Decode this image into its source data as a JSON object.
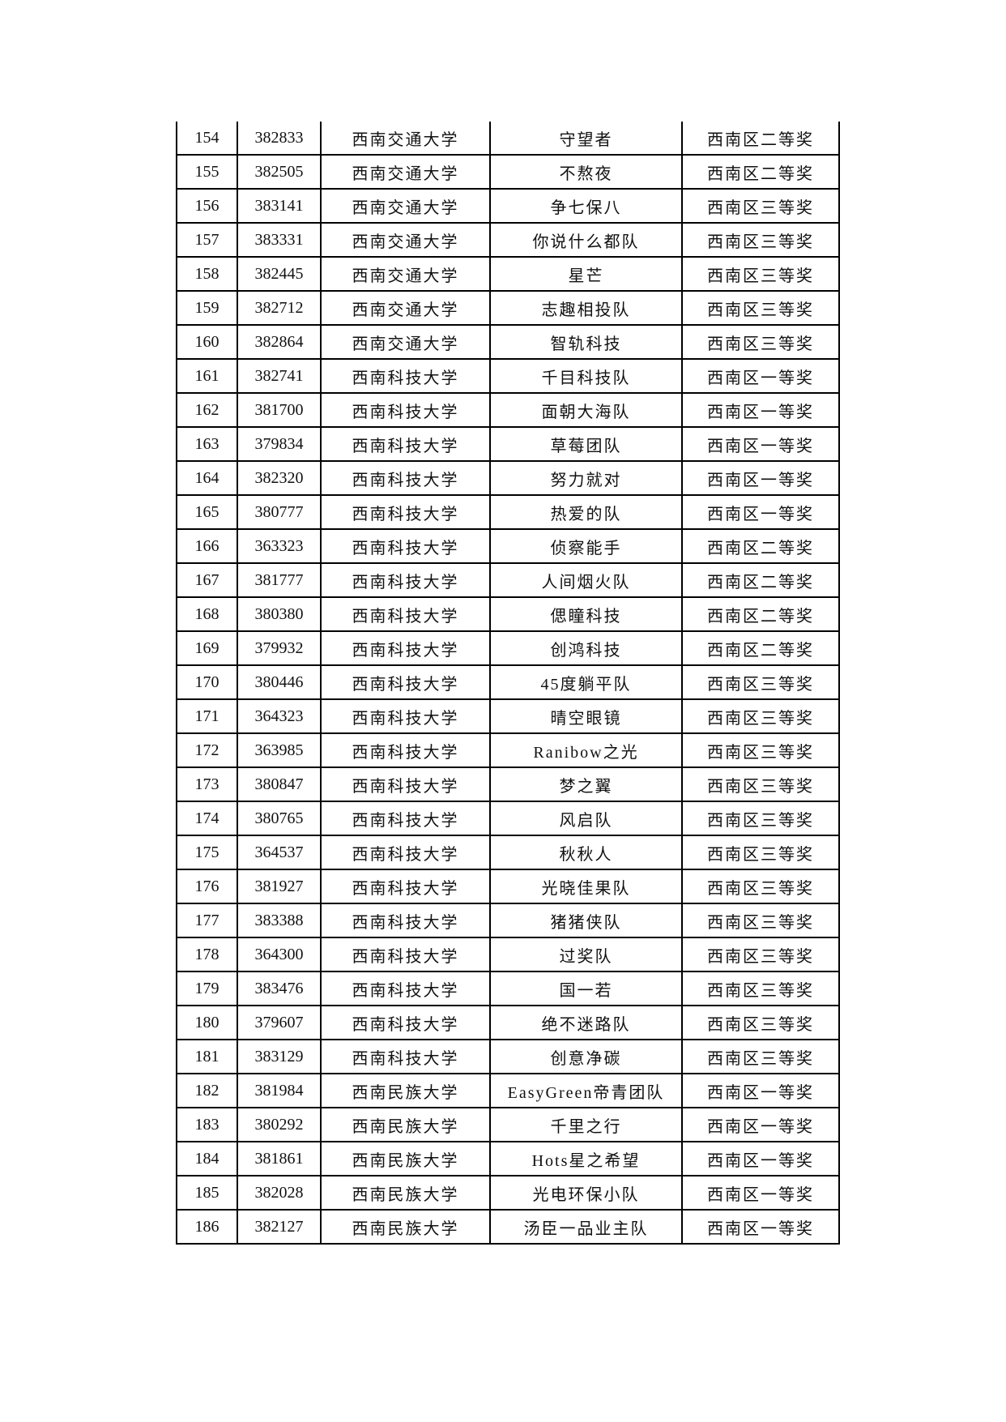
{
  "table": {
    "rows": [
      [
        "154",
        "382833",
        "西南交通大学",
        "守望者",
        "西南区二等奖"
      ],
      [
        "155",
        "382505",
        "西南交通大学",
        "不熬夜",
        "西南区二等奖"
      ],
      [
        "156",
        "383141",
        "西南交通大学",
        "争七保八",
        "西南区三等奖"
      ],
      [
        "157",
        "383331",
        "西南交通大学",
        "你说什么都队",
        "西南区三等奖"
      ],
      [
        "158",
        "382445",
        "西南交通大学",
        "星芒",
        "西南区三等奖"
      ],
      [
        "159",
        "382712",
        "西南交通大学",
        "志趣相投队",
        "西南区三等奖"
      ],
      [
        "160",
        "382864",
        "西南交通大学",
        "智轨科技",
        "西南区三等奖"
      ],
      [
        "161",
        "382741",
        "西南科技大学",
        "千目科技队",
        "西南区一等奖"
      ],
      [
        "162",
        "381700",
        "西南科技大学",
        "面朝大海队",
        "西南区一等奖"
      ],
      [
        "163",
        "379834",
        "西南科技大学",
        "草莓团队",
        "西南区一等奖"
      ],
      [
        "164",
        "382320",
        "西南科技大学",
        "努力就对",
        "西南区一等奖"
      ],
      [
        "165",
        "380777",
        "西南科技大学",
        "热爱的队",
        "西南区一等奖"
      ],
      [
        "166",
        "363323",
        "西南科技大学",
        "侦察能手",
        "西南区二等奖"
      ],
      [
        "167",
        "381777",
        "西南科技大学",
        "人间烟火队",
        "西南区二等奖"
      ],
      [
        "168",
        "380380",
        "西南科技大学",
        "偲瞳科技",
        "西南区二等奖"
      ],
      [
        "169",
        "379932",
        "西南科技大学",
        "创鸿科技",
        "西南区二等奖"
      ],
      [
        "170",
        "380446",
        "西南科技大学",
        "45度躺平队",
        "西南区三等奖"
      ],
      [
        "171",
        "364323",
        "西南科技大学",
        "晴空眼镜",
        "西南区三等奖"
      ],
      [
        "172",
        "363985",
        "西南科技大学",
        "Ranibow之光",
        "西南区三等奖"
      ],
      [
        "173",
        "380847",
        "西南科技大学",
        "梦之翼",
        "西南区三等奖"
      ],
      [
        "174",
        "380765",
        "西南科技大学",
        "风启队",
        "西南区三等奖"
      ],
      [
        "175",
        "364537",
        "西南科技大学",
        "秋秋人",
        "西南区三等奖"
      ],
      [
        "176",
        "381927",
        "西南科技大学",
        "光晓佳果队",
        "西南区三等奖"
      ],
      [
        "177",
        "383388",
        "西南科技大学",
        "猪猪侠队",
        "西南区三等奖"
      ],
      [
        "178",
        "364300",
        "西南科技大学",
        "过奖队",
        "西南区三等奖"
      ],
      [
        "179",
        "383476",
        "西南科技大学",
        "国一若",
        "西南区三等奖"
      ],
      [
        "180",
        "379607",
        "西南科技大学",
        "绝不迷路队",
        "西南区三等奖"
      ],
      [
        "181",
        "383129",
        "西南科技大学",
        "创意净碳",
        "西南区三等奖"
      ],
      [
        "182",
        "381984",
        "西南民族大学",
        "EasyGreen帝青团队",
        "西南区一等奖"
      ],
      [
        "183",
        "380292",
        "西南民族大学",
        "千里之行",
        "西南区一等奖"
      ],
      [
        "184",
        "381861",
        "西南民族大学",
        "Hots星之希望",
        "西南区一等奖"
      ],
      [
        "185",
        "382028",
        "西南民族大学",
        "光电环保小队",
        "西南区一等奖"
      ],
      [
        "186",
        "382127",
        "西南民族大学",
        "汤臣一品业主队",
        "西南区一等奖"
      ]
    ]
  }
}
